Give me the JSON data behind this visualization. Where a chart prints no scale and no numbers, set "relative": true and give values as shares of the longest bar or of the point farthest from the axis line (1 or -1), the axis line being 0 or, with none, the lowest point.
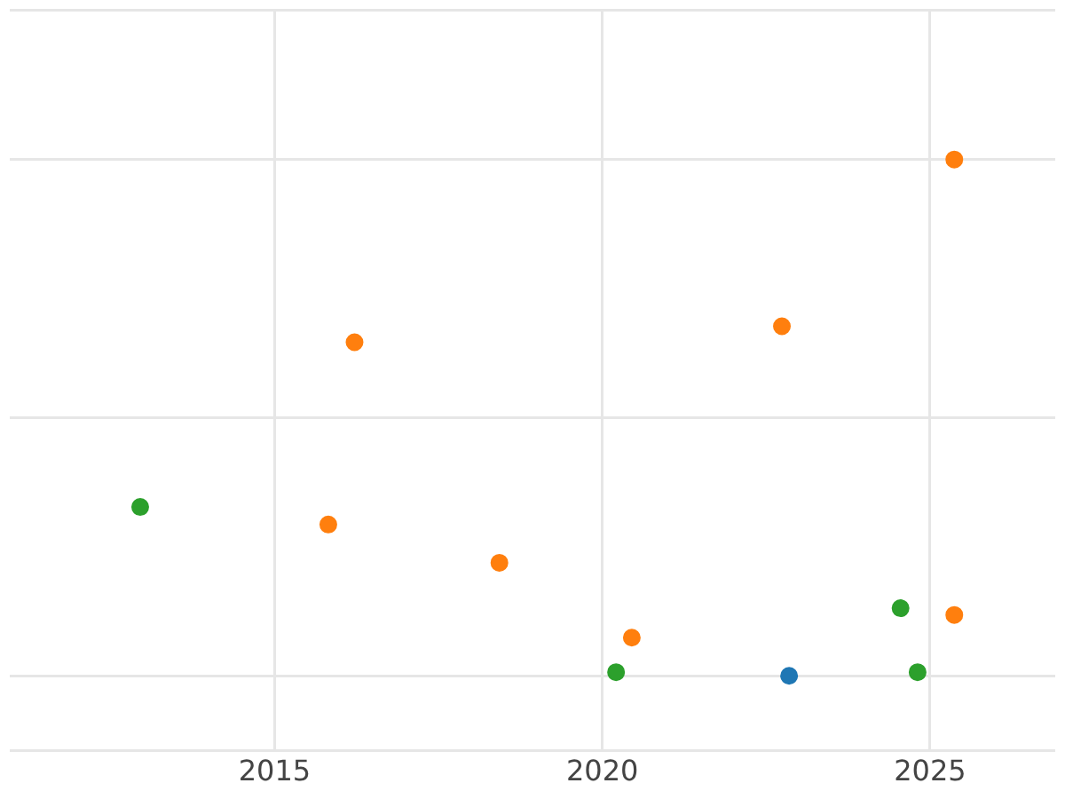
{
  "chart_data": {
    "type": "scatter",
    "relative": true,
    "xlim": [
      2010.96,
      2026.91
    ],
    "xticks": [
      2015,
      2020,
      2025
    ],
    "grid": true,
    "legend": false,
    "marker": "circle",
    "tick_labels": "x",
    "series": [
      {
        "color": "#1f77b4",
        "x": [
          2022.85
        ],
        "values": [
          0
        ]
      },
      {
        "color": "#ff7f0e",
        "x": [
          2016.22,
          2015.82,
          2018.43,
          2020.45,
          2022.74,
          2025.37,
          2025.37
        ],
        "values": [
          0.646,
          0.293,
          0.219,
          0.074,
          0.677,
          1,
          0.118
        ]
      },
      {
        "color": "#2ca02c",
        "x": [
          2012.95,
          2020.21,
          2024.55,
          2024.81
        ],
        "values": [
          0.327,
          0.007,
          0.131,
          0.007
        ]
      }
    ]
  }
}
